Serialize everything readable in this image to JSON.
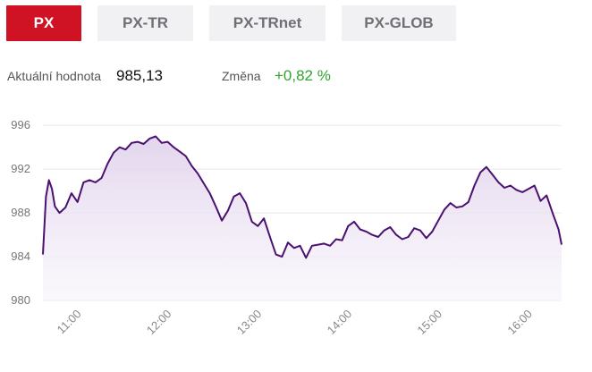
{
  "tabs": [
    {
      "label": "PX",
      "active": true
    },
    {
      "label": "PX-TR",
      "active": false
    },
    {
      "label": "PX-TRnet",
      "active": false
    },
    {
      "label": "PX-GLOB",
      "active": false
    }
  ],
  "stats": {
    "current_label": "Aktuální hodnota",
    "current_value": "985,13",
    "change_label": "Změna",
    "change_value": "+0,82 %"
  },
  "colors": {
    "active_tab": "#d01225",
    "inactive_tab_bg": "#f1f1f3",
    "line": "#4a1170",
    "fill": "#e9dff1",
    "positive_change": "#2fa52f"
  },
  "chart_data": {
    "type": "area",
    "title": "",
    "xlabel": "",
    "ylabel": "",
    "ylim": [
      980,
      997
    ],
    "yticks": [
      980,
      984,
      988,
      992,
      996
    ],
    "ytick_labels": [
      "980",
      "984",
      "988",
      "992",
      "996"
    ],
    "xlim": [
      "10:40",
      "16:25"
    ],
    "xticks": [
      "11:00",
      "12:00",
      "13:00",
      "14:00",
      "15:00",
      "16:00"
    ],
    "grid": true,
    "legend": "none",
    "series": [
      {
        "x": [
          "10:40",
          "10:42",
          "10:44",
          "10:46",
          "10:48",
          "10:51",
          "10:55",
          "10:59",
          "11:03",
          "11:07",
          "11:11",
          "11:15",
          "11:19",
          "11:23",
          "11:27",
          "11:31",
          "11:35",
          "11:39",
          "11:43",
          "11:47",
          "11:51",
          "11:55",
          "11:59",
          "12:03",
          "12:07",
          "12:11",
          "12:15",
          "12:19",
          "12:23",
          "12:27",
          "12:31",
          "12:35",
          "12:39",
          "12:43",
          "12:47",
          "12:51",
          "12:55",
          "12:59",
          "13:03",
          "13:07",
          "13:11",
          "13:15",
          "13:19",
          "13:23",
          "13:27",
          "13:31",
          "13:35",
          "13:39",
          "13:43",
          "13:47",
          "13:51",
          "13:55",
          "13:59",
          "14:03",
          "14:07",
          "14:11",
          "14:15",
          "14:19",
          "14:23",
          "14:27",
          "14:31",
          "14:35",
          "14:39",
          "14:43",
          "14:47",
          "14:51",
          "14:55",
          "14:59",
          "15:03",
          "15:07",
          "15:11",
          "15:15",
          "15:19",
          "15:23",
          "15:27",
          "15:31",
          "15:35",
          "15:39",
          "15:43",
          "15:47",
          "15:51",
          "15:55",
          "15:59",
          "16:03",
          "16:07",
          "16:11",
          "16:15",
          "16:19",
          "16:23",
          "16:25"
        ],
        "values": [
          984.2,
          989.5,
          991.0,
          990.2,
          988.6,
          988.0,
          988.5,
          989.8,
          989.0,
          990.8,
          991.0,
          990.8,
          991.2,
          992.5,
          993.5,
          994.0,
          993.8,
          994.4,
          994.5,
          994.3,
          994.8,
          995.0,
          994.4,
          994.5,
          994.0,
          993.6,
          993.2,
          992.3,
          991.6,
          990.7,
          989.8,
          988.6,
          987.3,
          988.2,
          989.5,
          989.8,
          988.9,
          987.2,
          986.8,
          987.5,
          985.8,
          984.2,
          984.0,
          985.3,
          984.8,
          985.0,
          983.9,
          985.0,
          985.1,
          985.2,
          985.0,
          985.6,
          985.5,
          986.8,
          987.2,
          986.5,
          986.3,
          986.0,
          985.8,
          986.4,
          986.7,
          986.0,
          985.6,
          985.8,
          986.6,
          986.4,
          985.7,
          986.3,
          987.3,
          988.3,
          988.9,
          988.5,
          988.6,
          989.0,
          990.5,
          991.7,
          992.2,
          991.5,
          990.8,
          990.3,
          990.5,
          990.1,
          989.9,
          990.2,
          990.5,
          989.1,
          989.6,
          988.0,
          986.5,
          985.1
        ]
      }
    ]
  }
}
